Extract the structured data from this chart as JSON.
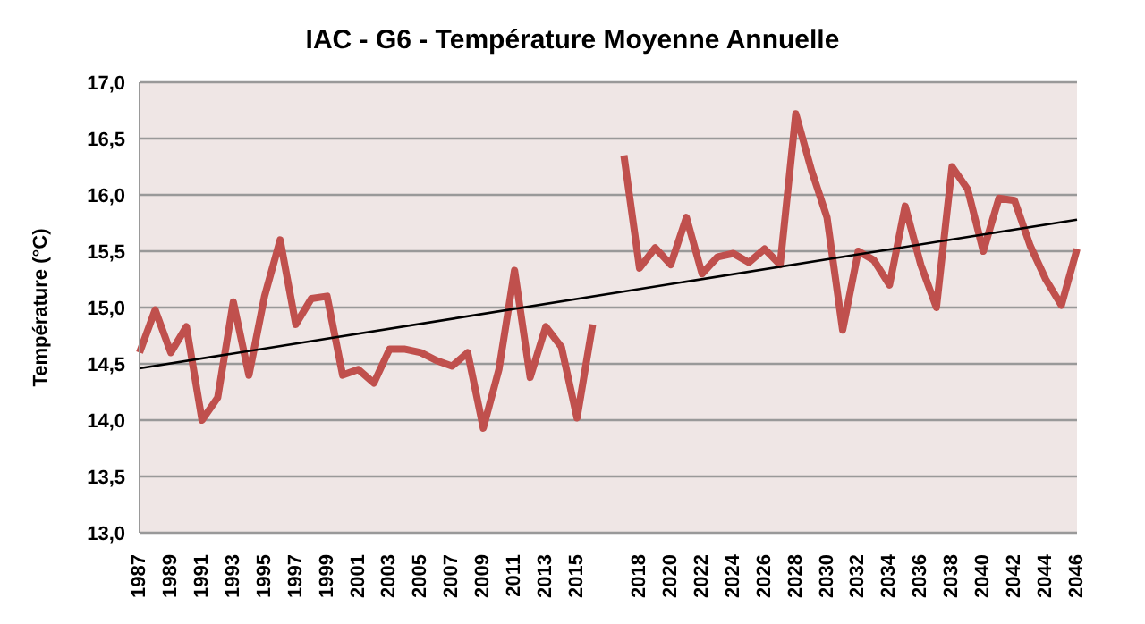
{
  "chart_data": {
    "type": "line",
    "title": "IAC - G6 - Température Moyenne Annuelle",
    "ylabel": "Température (°C)",
    "categories": [
      "1987",
      null,
      "1989",
      null,
      "1991",
      null,
      "1993",
      null,
      "1995",
      null,
      "1997",
      null,
      "1999",
      null,
      "2001",
      null,
      "2003",
      null,
      "2005",
      null,
      "2007",
      null,
      "2009",
      null,
      "2011",
      null,
      "2013",
      null,
      "2015",
      null,
      null,
      null,
      "2018",
      null,
      "2020",
      null,
      "2022",
      null,
      "2024",
      null,
      "2026",
      null,
      "2028",
      null,
      "2030",
      null,
      "2032",
      null,
      "2034",
      null,
      "2036",
      null,
      "2038",
      null,
      "2040",
      null,
      "2042",
      null,
      "2044",
      null,
      "2046"
    ],
    "series": [
      {
        "color": "#c0504d",
        "values": [
          14.6,
          14.98,
          14.6,
          14.83,
          14.0,
          14.2,
          15.05,
          14.4,
          15.1,
          15.6,
          14.85,
          15.08,
          15.1,
          14.4,
          14.45,
          14.33,
          14.63,
          14.63,
          14.6,
          14.53,
          14.48,
          14.6,
          13.93,
          14.45,
          15.33,
          14.38,
          14.83,
          14.65,
          14.02,
          14.85,
          null,
          16.35,
          15.35,
          15.53,
          15.38,
          15.8,
          15.3,
          15.45,
          15.48,
          15.4,
          15.52,
          15.38,
          16.72,
          16.22,
          15.8,
          14.8,
          15.5,
          15.42,
          15.2,
          15.9,
          15.38,
          15.0,
          16.25,
          16.05,
          15.5,
          15.97,
          15.95,
          15.55,
          15.25,
          15.02,
          15.52
        ]
      },
      {
        "type": "line",
        "color": "#000000",
        "values": [
          14.46,
          null,
          null,
          null,
          null,
          null,
          null,
          null,
          null,
          null,
          null,
          null,
          null,
          null,
          null,
          null,
          null,
          null,
          null,
          null,
          null,
          null,
          null,
          null,
          null,
          null,
          null,
          null,
          null,
          null,
          null,
          null,
          null,
          null,
          null,
          null,
          null,
          null,
          null,
          null,
          null,
          null,
          null,
          null,
          null,
          null,
          null,
          null,
          null,
          null,
          null,
          null,
          null,
          null,
          null,
          null,
          null,
          null,
          null,
          null,
          15.78
        ]
      }
    ],
    "ylim": [
      13,
      17
    ],
    "yticks": [
      {
        "value": 13,
        "label": "13,0"
      },
      {
        "value": 13.5,
        "label": "13,5"
      },
      {
        "value": 14,
        "label": "14,0"
      },
      {
        "value": 14.5,
        "label": "14,5"
      },
      {
        "value": 15,
        "label": "15,0"
      },
      {
        "value": 15.5,
        "label": "15,5"
      },
      {
        "value": 16,
        "label": "16,0"
      },
      {
        "value": 16.5,
        "label": "16,5"
      },
      {
        "value": 17,
        "label": "17,0"
      }
    ],
    "grid": "y",
    "marker": "none",
    "line_style": "solid"
  }
}
